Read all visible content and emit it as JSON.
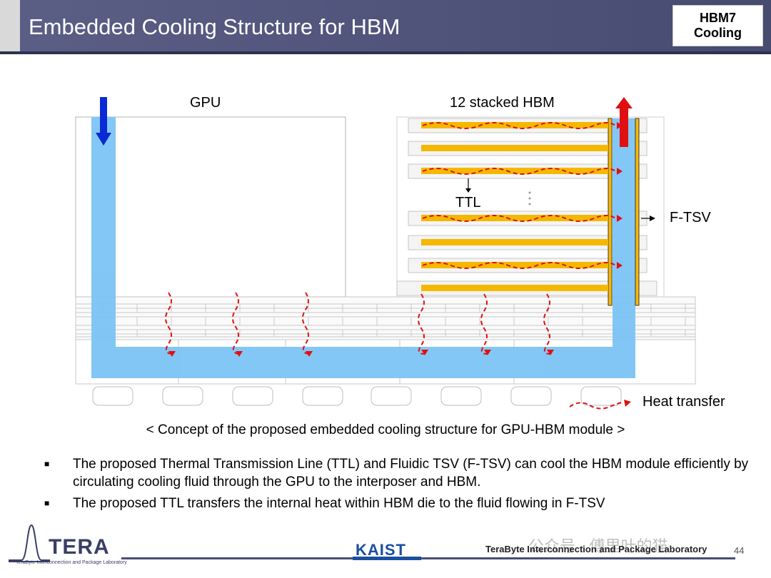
{
  "header": {
    "title": "Embedded Cooling Structure for HBM",
    "badge_line1": "HBM7",
    "badge_line2": "Cooling"
  },
  "diagram": {
    "gpu_label": "GPU",
    "hbm_label": "12 stacked HBM",
    "ttl_label": "TTL",
    "ftsv_label": "F-TSV",
    "legend_label": "Heat transfer",
    "caption": "< Concept of the proposed embedded cooling structure for GPU-HBM module >"
  },
  "bullets": [
    "The proposed Thermal Transmission Line (TTL) and Fluidic TSV (F-TSV) can cool the HBM module efficiently by circulating cooling fluid through the GPU to the interposer and HBM.",
    "The proposed TTL transfers the internal heat within HBM die to the fluid flowing in F-TSV"
  ],
  "footer": {
    "logo_word": "TERA",
    "logo_sub": "TeraByte Interconnection and Package Laboratory",
    "kaist": "KAIST",
    "lab": "TeraByte Interconnection and Package Laboratory",
    "page": "44",
    "watermark": "公众号 · 傅里叶的猫"
  },
  "colors": {
    "fluid": "#7cc4f6",
    "ttl": "#f5b800",
    "inflow_arrow": "#0a2ad6",
    "outflow_arrow": "#e01010",
    "heat_arrow": "#e01010"
  }
}
